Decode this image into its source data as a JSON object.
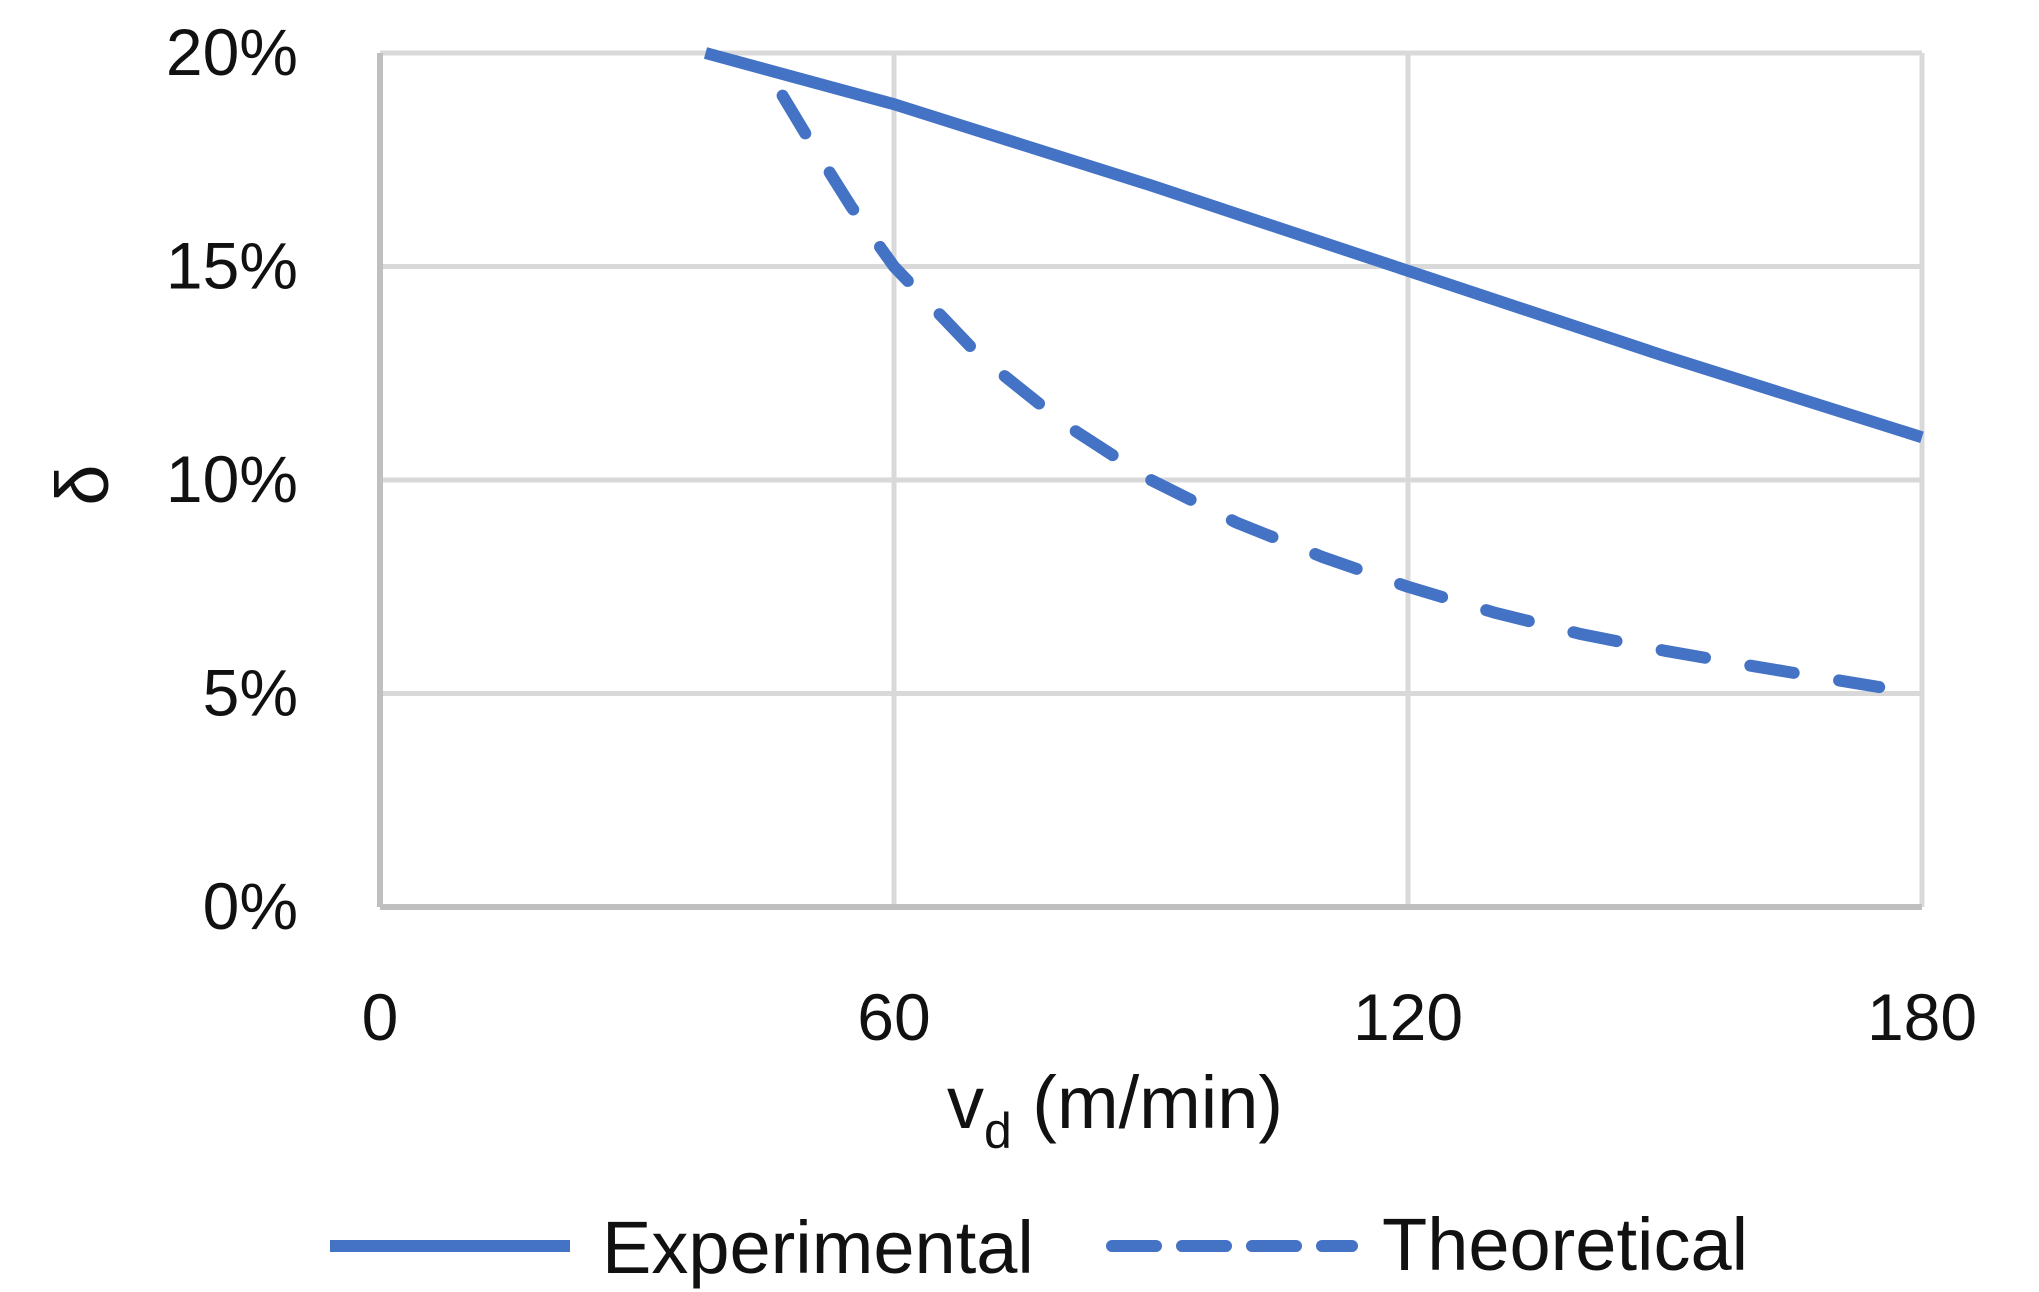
{
  "chart_data": {
    "type": "line",
    "xlabel": {
      "main": "v",
      "subscript": "d",
      "suffix": " (m/min)"
    },
    "ylabel": "δ",
    "xlim": [
      0,
      180
    ],
    "ylim": [
      0,
      0.2
    ],
    "x_ticks": [
      0,
      60,
      120,
      180
    ],
    "x_tick_labels": [
      "0",
      "60",
      "120",
      "180"
    ],
    "y_ticks": [
      0,
      0.05,
      0.1,
      0.15,
      0.2
    ],
    "y_tick_labels": [
      "0%",
      "5%",
      "10%",
      "15%",
      "20%"
    ],
    "grid": true,
    "legend_position": "bottom",
    "series": [
      {
        "name": "Experimental",
        "style": "solid",
        "color": "#4472C4",
        "x": [
          38,
          60,
          90,
          120,
          150,
          180
        ],
        "y": [
          0.2,
          0.188,
          0.169,
          0.149,
          0.129,
          0.11
        ]
      },
      {
        "name": "Theoretical",
        "style": "dashed",
        "color": "#4472C4",
        "x": [
          47,
          50,
          55,
          60,
          70,
          80,
          90,
          100,
          110,
          120,
          130,
          140,
          150,
          160,
          175
        ],
        "y": [
          0.19,
          0.18,
          0.164,
          0.15,
          0.129,
          0.113,
          0.1,
          0.09,
          0.082,
          0.075,
          0.069,
          0.064,
          0.06,
          0.0565,
          0.0515
        ]
      }
    ]
  }
}
